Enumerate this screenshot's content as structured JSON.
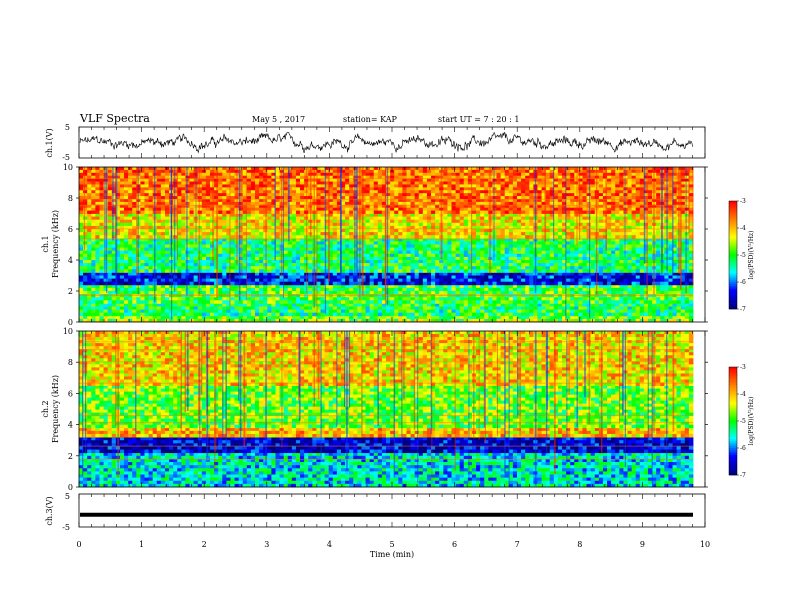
{
  "header": {
    "title": "VLF Spectra",
    "date": "May 5 , 2017",
    "station": "station= KAP",
    "start_ut": "start UT = 7 : 20 : 1"
  },
  "chart_data": [
    {
      "type": "line",
      "name": "ch1-waveform",
      "ylabel": "ch.1(V)",
      "ylim": [
        -5,
        5
      ],
      "yticks": [
        "5",
        "-5"
      ],
      "xlim": [
        0,
        10
      ],
      "note_values": "noisy voltage trace, approx. between -3 and 3 V"
    },
    {
      "type": "heatmap",
      "name": "ch1-spectrogram",
      "ylabel_lines": [
        "ch.1",
        "Frequency (kHz)"
      ],
      "ylim": [
        0,
        10
      ],
      "yticks": [
        "0",
        "2",
        "4",
        "6",
        "8",
        "10"
      ],
      "xlim": [
        0,
        10
      ],
      "colorbar": {
        "label": "log(PSD)(V²/Hz)",
        "ticks": [
          "-3",
          "-4",
          "-5",
          "-6",
          "-7"
        ],
        "range": [
          -7,
          -3
        ]
      },
      "bands": [
        {
          "f0": 0.0,
          "f1": 0.4,
          "level": 0.55
        },
        {
          "f0": 0.4,
          "f1": 1.2,
          "level": 0.45
        },
        {
          "f0": 1.2,
          "f1": 2.4,
          "level": 0.5
        },
        {
          "f0": 2.4,
          "f1": 3.2,
          "level": 0.15
        },
        {
          "f0": 3.2,
          "f1": 5.4,
          "level": 0.45
        },
        {
          "f0": 5.4,
          "f1": 7.0,
          "level": 0.7
        },
        {
          "f0": 7.0,
          "f1": 10.0,
          "level": 0.85
        }
      ]
    },
    {
      "type": "heatmap",
      "name": "ch2-spectrogram",
      "ylabel_lines": [
        "ch.2",
        "Frequency (kHz)"
      ],
      "ylim": [
        0,
        10
      ],
      "yticks": [
        "0",
        "2",
        "4",
        "6",
        "8",
        "10"
      ],
      "xlim": [
        0,
        10
      ],
      "colorbar": {
        "label": "log(PSD)(V²/Hz)",
        "ticks": [
          "-3",
          "-4",
          "-5",
          "-6",
          "-7"
        ],
        "range": [
          -7,
          -3
        ]
      },
      "bands": [
        {
          "f0": 0.0,
          "f1": 2.2,
          "level": 0.35
        },
        {
          "f0": 2.2,
          "f1": 3.2,
          "level": 0.1
        },
        {
          "f0": 3.2,
          "f1": 3.8,
          "level": 0.75
        },
        {
          "f0": 3.8,
          "f1": 6.5,
          "level": 0.55
        },
        {
          "f0": 6.5,
          "f1": 10.0,
          "level": 0.72
        }
      ]
    },
    {
      "type": "line",
      "name": "ch3-waveform",
      "ylabel": "ch.3(V)",
      "ylim": [
        -5,
        5
      ],
      "yticks": [
        "5",
        "-5"
      ],
      "xlim": [
        0,
        10
      ],
      "values_constant": -1.3
    }
  ],
  "xaxis": {
    "label": "Time (min)",
    "ticks": [
      "0",
      "1",
      "2",
      "3",
      "4",
      "5",
      "6",
      "7",
      "8",
      "9",
      "10"
    ]
  },
  "colors": {
    "scale": [
      "#00007f",
      "#0000ff",
      "#00ffff",
      "#00ff00",
      "#ffff00",
      "#ff7f00",
      "#ff0000"
    ]
  }
}
